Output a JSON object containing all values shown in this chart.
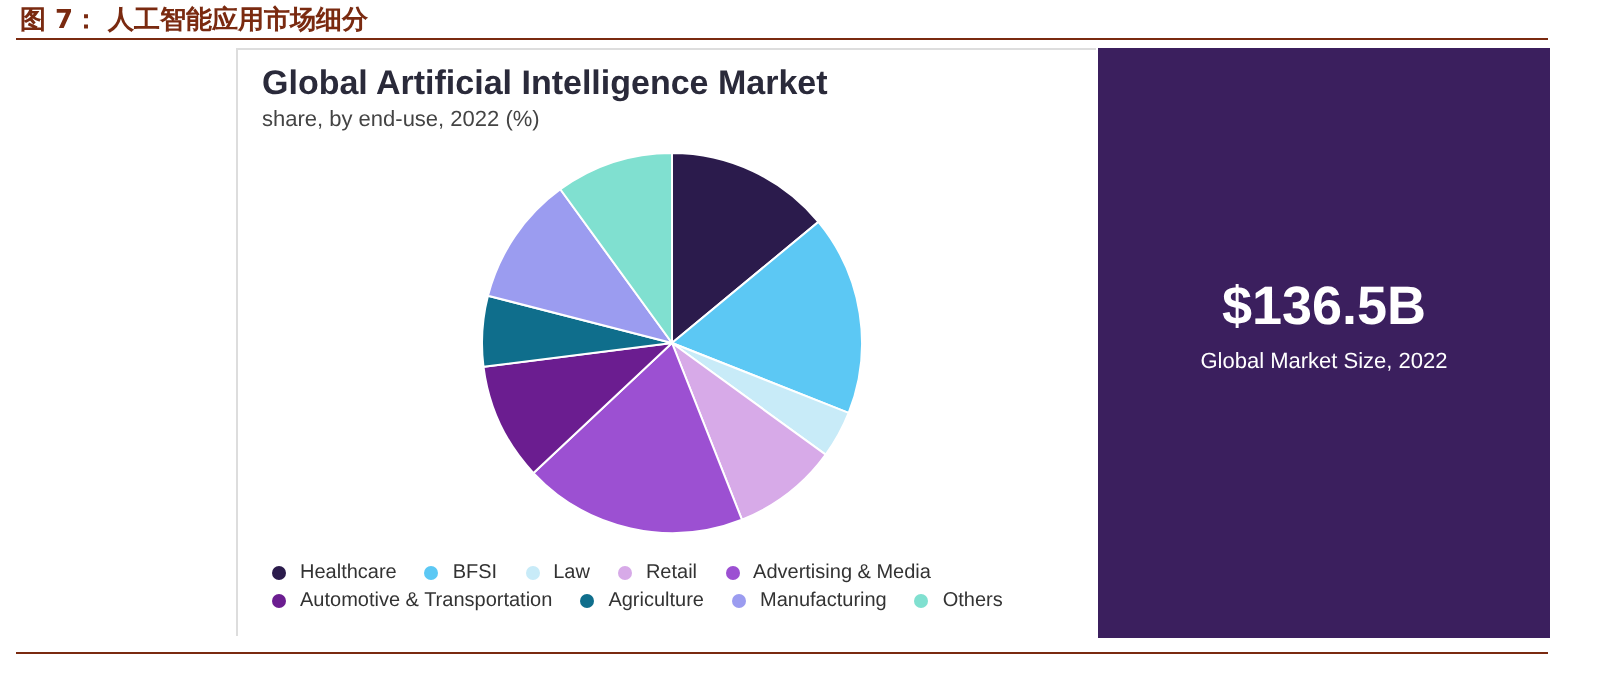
{
  "chart_data": {
    "type": "pie",
    "title": "Global Artificial Intelligence Market",
    "subtitle": "share, by end-use, 2022 (%)",
    "categories": [
      "Healthcare",
      "BFSI",
      "Law",
      "Retail",
      "Advertising & Media",
      "Automotive & Transportation",
      "Agriculture",
      "Manufacturing",
      "Others"
    ],
    "values": [
      14,
      17,
      4,
      9,
      19,
      10,
      6,
      11,
      10
    ],
    "colors": [
      "#2b1b4c",
      "#5cc8f4",
      "#c8ebf8",
      "#d7aae8",
      "#9c50d2",
      "#6b1d90",
      "#0f6e8c",
      "#9b9cf0",
      "#80e0d0"
    ],
    "legend": "bottom",
    "annotations": [
      "图 7： 人工智能应用市场细分",
      "$136.5B",
      "Global Market Size, 2022"
    ]
  }
}
